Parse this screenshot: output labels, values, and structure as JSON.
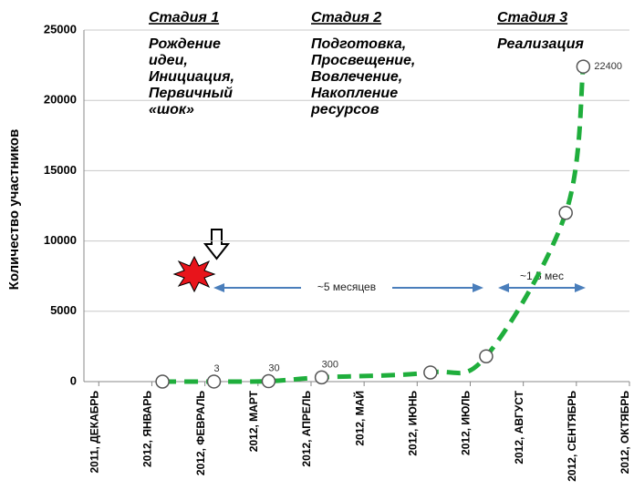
{
  "chart_data": {
    "type": "line",
    "ylabel": "Количество участников",
    "x": [
      1.2,
      2.17,
      3.2,
      4.2,
      6.25,
      7.3,
      8.8,
      9.13
    ],
    "series": [
      {
        "color": "#1fae3c",
        "values": [
          0,
          3,
          30,
          300,
          650,
          1800,
          12000,
          22400
        ],
        "value_labels": [
          null,
          "3",
          "30",
          "300",
          null,
          null,
          null,
          "22400"
        ]
      }
    ],
    "xlim": [
      -0.28,
      10
    ],
    "xticks": [
      {
        "value": 0,
        "label": "2011, ДЕКАБРЬ"
      },
      {
        "value": 1,
        "label": "2012, ЯНВАРЬ"
      },
      {
        "value": 2,
        "label": "2012, ФЕВРАЛЬ"
      },
      {
        "value": 3,
        "label": "2012, МАРТ"
      },
      {
        "value": 4,
        "label": "2012, АПРЕЛЬ"
      },
      {
        "value": 5,
        "label": "2012, МАЙ"
      },
      {
        "value": 6,
        "label": "2012, ИЮНЬ"
      },
      {
        "value": 7,
        "label": "2012, ИЮЛЬ"
      },
      {
        "value": 8,
        "label": "2012, АВГУСТ"
      },
      {
        "value": 9,
        "label": "2012, СЕНТЯБРЬ"
      },
      {
        "value": 10,
        "label": "2012, ОКТЯБРЬ"
      }
    ],
    "ylim": [
      0,
      25000
    ],
    "yticks": [
      0,
      5000,
      10000,
      15000,
      20000,
      25000
    ],
    "grid": true,
    "stages": [
      {
        "title": "Стадия 1",
        "lines": [
          "Рождение",
          "идеи,",
          "Инициация,",
          "Первичный",
          "«шок»"
        ]
      },
      {
        "title": "Стадия 2",
        "lines": [
          "Подготовка,",
          "Просвещение,",
          "Вовлечение,",
          "Накопление",
          "ресурсов"
        ]
      },
      {
        "title": "Стадия 3",
        "lines": [
          "Реализация"
        ]
      }
    ],
    "annotations": [
      "~5 месяцев",
      "~1,5 мес"
    ]
  }
}
